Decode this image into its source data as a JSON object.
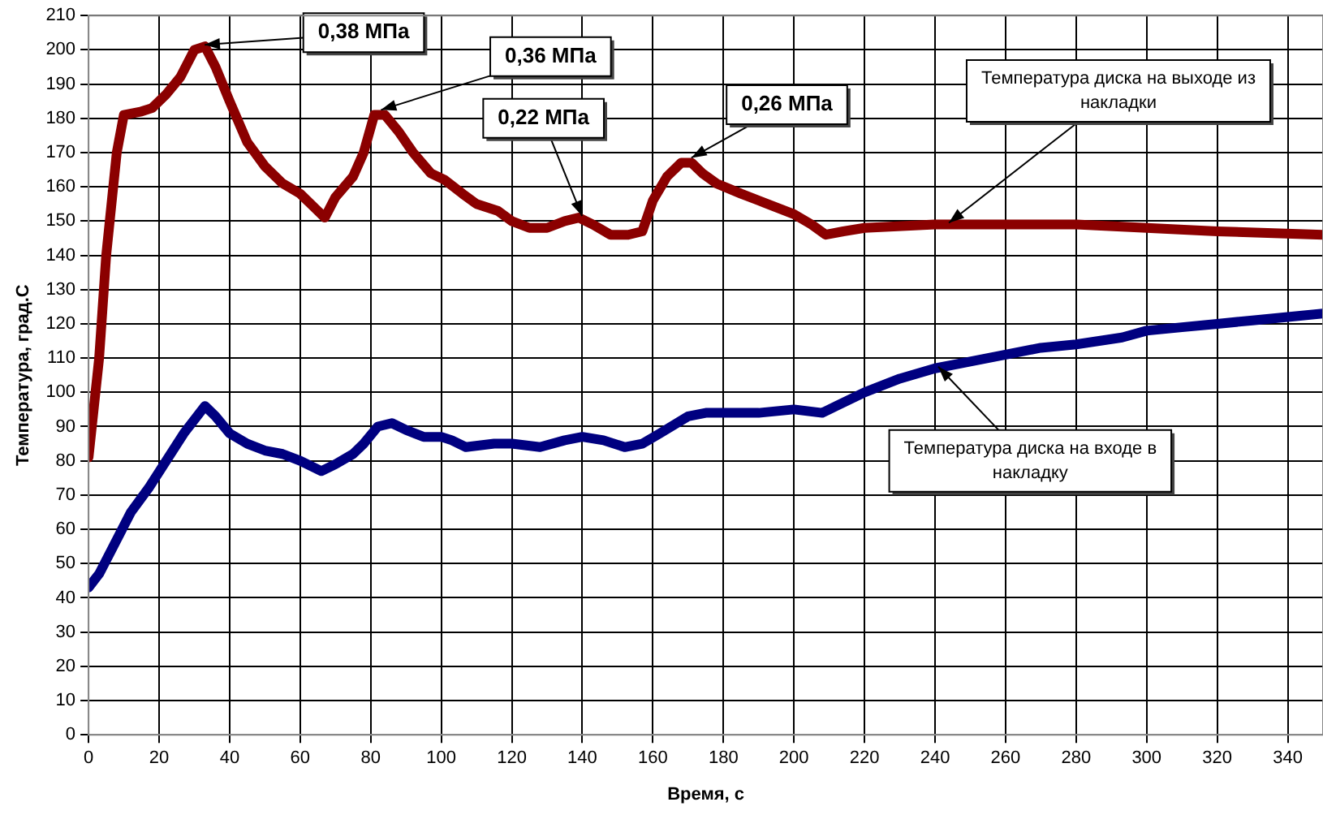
{
  "chart_data": {
    "type": "line",
    "xlabel": "Время, с",
    "ylabel": "Температура, град.С",
    "xlim": [
      0,
      350
    ],
    "xticks": [
      0,
      20,
      40,
      60,
      80,
      100,
      120,
      140,
      160,
      180,
      200,
      220,
      240,
      260,
      280,
      300,
      320,
      340
    ],
    "ylim": [
      0,
      210
    ],
    "yticks": [
      0,
      10,
      20,
      30,
      40,
      50,
      60,
      70,
      80,
      90,
      100,
      110,
      120,
      130,
      140,
      150,
      160,
      170,
      180,
      190,
      200,
      210
    ],
    "grid": true,
    "legend": false,
    "marker": "none",
    "line_style": "solid",
    "series": [
      {
        "color": "#8b0000",
        "x": [
          0,
          3,
          5,
          8,
          10,
          15,
          18,
          22,
          26,
          30,
          33,
          36,
          40,
          45,
          50,
          55,
          60,
          65,
          67,
          70,
          75,
          78,
          81,
          84,
          88,
          92,
          97,
          101,
          106,
          110,
          116,
          120,
          125,
          130,
          135,
          139,
          143,
          148,
          153,
          157,
          160,
          164,
          168,
          171,
          174,
          178,
          185,
          190,
          200,
          205,
          209,
          214,
          220,
          240,
          260,
          280,
          300,
          320,
          350
        ],
        "values": [
          81,
          110,
          140,
          170,
          181,
          182,
          183,
          187,
          192,
          200,
          201,
          195,
          185,
          173,
          166,
          161,
          158,
          153,
          151,
          157,
          163,
          170,
          181,
          181,
          176,
          170,
          164,
          162,
          158,
          155,
          153,
          150,
          148,
          148,
          150,
          151,
          149,
          146,
          146,
          147,
          156,
          163,
          167,
          167,
          164,
          161,
          158,
          156,
          152,
          149,
          146,
          147,
          148,
          149,
          149,
          149,
          148,
          147,
          146
        ]
      },
      {
        "color": "#000080",
        "x": [
          0,
          3,
          7,
          12,
          17,
          22,
          27,
          33,
          36,
          40,
          45,
          50,
          55,
          60,
          66,
          70,
          75,
          78,
          82,
          86,
          90,
          95,
          100,
          103,
          107,
          115,
          120,
          128,
          135,
          140,
          146,
          152,
          157,
          162,
          170,
          175,
          180,
          190,
          200,
          208,
          212,
          220,
          230,
          240,
          250,
          260,
          270,
          280,
          293,
          300,
          310,
          320,
          330,
          340,
          350
        ],
        "values": [
          43,
          47,
          55,
          65,
          72,
          80,
          88,
          96,
          93,
          88,
          85,
          83,
          82,
          80,
          77,
          79,
          82,
          85,
          90,
          91,
          89,
          87,
          87,
          86,
          84,
          85,
          85,
          84,
          86,
          87,
          86,
          84,
          85,
          88,
          93,
          94,
          94,
          94,
          95,
          94,
          96,
          100,
          104,
          107,
          109,
          111,
          113,
          114,
          116,
          118,
          119,
          120,
          121,
          122,
          123
        ]
      }
    ],
    "annotations": [
      {
        "text": "0,38 МПа",
        "x": 32,
        "y": 201
      },
      {
        "text": "0,36 МПа",
        "x": 82,
        "y": 182
      },
      {
        "text": "0,22 МПа",
        "x": 139,
        "y": 151
      },
      {
        "text": "0,26 МПа",
        "x": 170,
        "y": 168
      },
      {
        "text": "Температура диска на выходе из накладки",
        "x": 243,
        "y": 149
      },
      {
        "text": "Температура диска на входе в накладку",
        "x": 240,
        "y": 107
      }
    ]
  }
}
